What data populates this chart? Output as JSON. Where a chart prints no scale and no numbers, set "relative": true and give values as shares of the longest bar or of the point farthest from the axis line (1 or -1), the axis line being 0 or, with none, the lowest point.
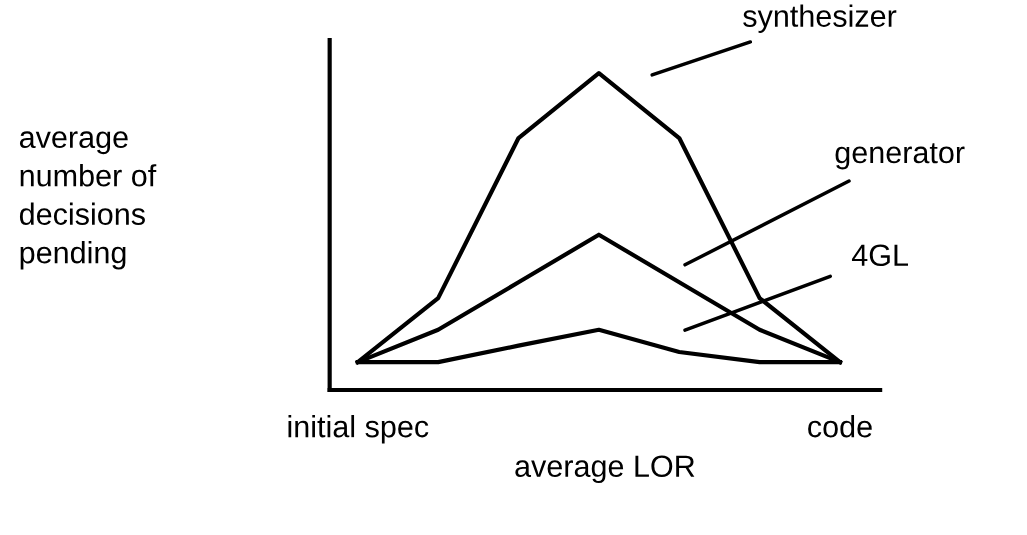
{
  "chart_data": {
    "type": "line",
    "relative": true,
    "xlabel": "average LOR",
    "ylabel": "average\nnumber of\ndecisions\npending",
    "categories": [
      "initial spec",
      null,
      null,
      null,
      null,
      null,
      "code"
    ],
    "series": [
      {
        "values": [
          0.088,
          0.29,
          0.795,
          1,
          0.795,
          0.29,
          0.088
        ],
        "color": "#000000"
      },
      {
        "values": [
          0.088,
          0.19,
          0.34,
          0.49,
          0.34,
          0.19,
          0.088
        ],
        "color": "#000000"
      },
      {
        "values": [
          0.088,
          0.088,
          0.14,
          0.19,
          0.12,
          0.088,
          0.088
        ],
        "color": "#000000"
      }
    ],
    "annotations": [
      "synthesizer",
      "generator",
      "4GL"
    ],
    "grid": false,
    "legend": false,
    "marker": "none",
    "line_style": "solid"
  }
}
